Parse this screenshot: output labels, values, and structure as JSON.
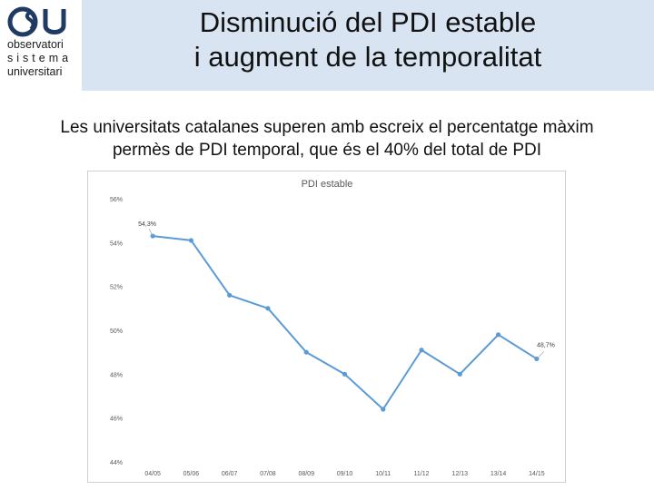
{
  "logo": {
    "line1": "observatori",
    "line2": "sistema",
    "line3": "universitari",
    "mark_letters": "OSU",
    "mark_color": "#1f3a63"
  },
  "header": {
    "title_line1": "Disminució del PDI estable",
    "title_line2": "i augment de la temporalitat",
    "background": "#d9e4f2"
  },
  "subtitle": {
    "line1": "Les universitats catalanes superen amb escreix el percentatge màxim",
    "line2": "permès de PDI temporal, que és el 40% del total de PDI"
  },
  "chart_data": {
    "type": "line",
    "title": "PDI estable",
    "categories": [
      "04/05",
      "05/06",
      "06/07",
      "07/08",
      "08/09",
      "09/10",
      "10/11",
      "11/12",
      "12/13",
      "13/14",
      "14/15"
    ],
    "series": [
      {
        "values": [
          54.3,
          54.1,
          51.6,
          51.0,
          49.0,
          48.0,
          46.4,
          49.1,
          48.0,
          49.8,
          48.7
        ]
      }
    ],
    "data_labels": [
      {
        "index": 0,
        "text": "54,3%"
      },
      {
        "index": 10,
        "text": "48,7%"
      }
    ],
    "yticks": [
      "56%",
      "54%",
      "52%",
      "50%",
      "48%",
      "46%",
      "44%"
    ],
    "ylim": [
      44,
      56
    ],
    "grid": false,
    "line_color": "#5b9bd5"
  }
}
